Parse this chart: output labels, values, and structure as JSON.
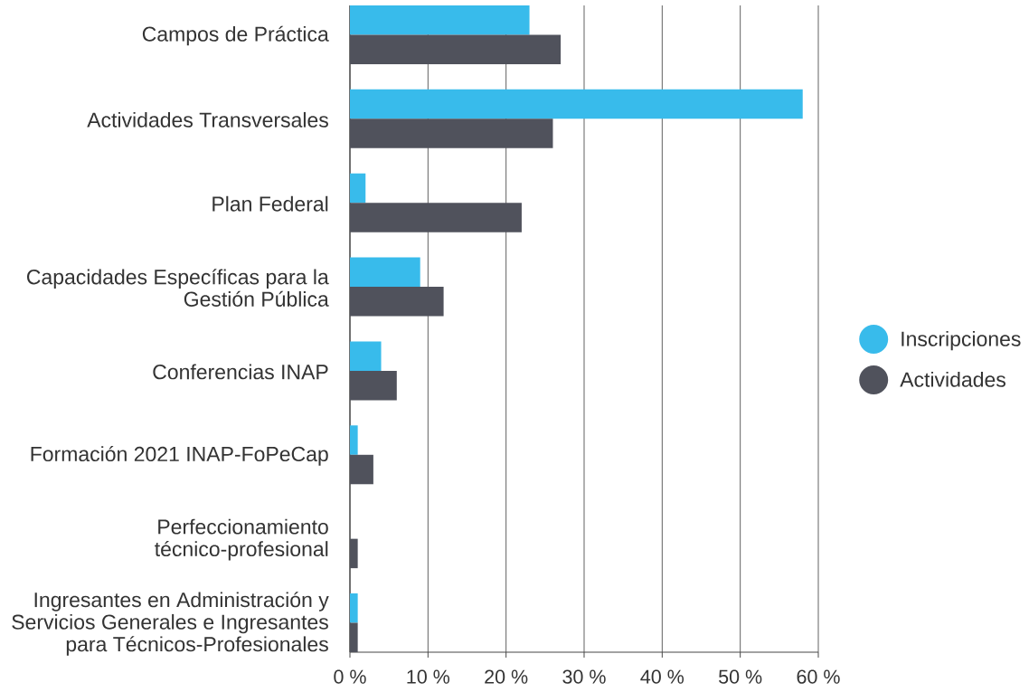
{
  "chart_data": {
    "type": "bar",
    "orientation": "horizontal",
    "categories": [
      "Campos de Práctica",
      "Actividades Transversales",
      "Plan Federal",
      "Capacidades Específicas para la Gestión Pública",
      "Conferencias INAP",
      "Formación 2021 INAP-FoPeCap",
      "Perfeccionamiento técnico-profesional",
      "Ingresantes en Administración y Servicios Generales e Ingresantes para Técnicos-Profesionales"
    ],
    "series": [
      {
        "name": "Inscripciones",
        "color": "#38bbeb",
        "values": [
          23,
          58,
          2,
          9,
          4,
          1,
          null,
          1
        ]
      },
      {
        "name": "Actividades",
        "color": "#50525c",
        "values": [
          27,
          26,
          22,
          12,
          6,
          3,
          1,
          1
        ]
      }
    ],
    "xlim": [
      0,
      60
    ],
    "xticks": [
      {
        "value": 0,
        "label": "0 %"
      },
      {
        "value": 10,
        "label": "10 %"
      },
      {
        "value": 20,
        "label": "20 %"
      },
      {
        "value": 30,
        "label": "30 %"
      },
      {
        "value": 40,
        "label": "40 %"
      },
      {
        "value": 50,
        "label": "50 %"
      },
      {
        "value": 60,
        "label": "60 %"
      }
    ],
    "grid": "x",
    "legend": "right"
  }
}
